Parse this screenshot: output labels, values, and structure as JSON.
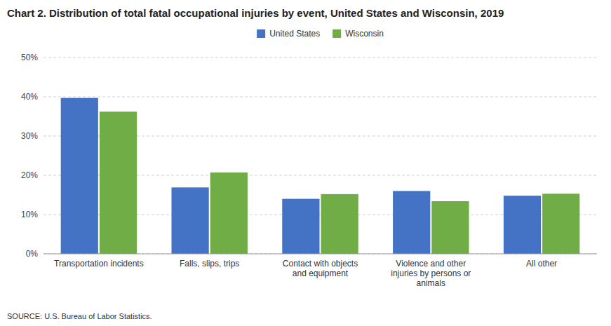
{
  "chart_data": {
    "type": "bar",
    "title": "Chart 2. Distribution of total fatal occupational injuries by event, United States and Wisconsin, 2019",
    "categories": [
      "Transportation incidents",
      "Falls, slips, trips",
      "Contact with objects\nand equipment",
      "Violence and other\ninjuries by persons or\nanimals",
      "All other"
    ],
    "series": [
      {
        "name": "United States",
        "color": "#4472C4",
        "values": [
          0.397,
          0.169,
          0.14,
          0.16,
          0.148
        ]
      },
      {
        "name": "Wisconsin",
        "color": "#70AD47",
        "values": [
          0.362,
          0.207,
          0.152,
          0.134,
          0.153
        ]
      }
    ],
    "ylim": [
      0,
      0.5
    ],
    "yticks": [
      {
        "value": 0.0,
        "label": "0%"
      },
      {
        "value": 0.1,
        "label": "10%"
      },
      {
        "value": 0.2,
        "label": "20%"
      },
      {
        "value": 0.3,
        "label": "30%"
      },
      {
        "value": 0.4,
        "label": "40%"
      },
      {
        "value": 0.5,
        "label": "50%"
      }
    ],
    "grid": true,
    "legend": "top",
    "source": "SOURCE: U.S. Bureau of Labor Statistics."
  }
}
